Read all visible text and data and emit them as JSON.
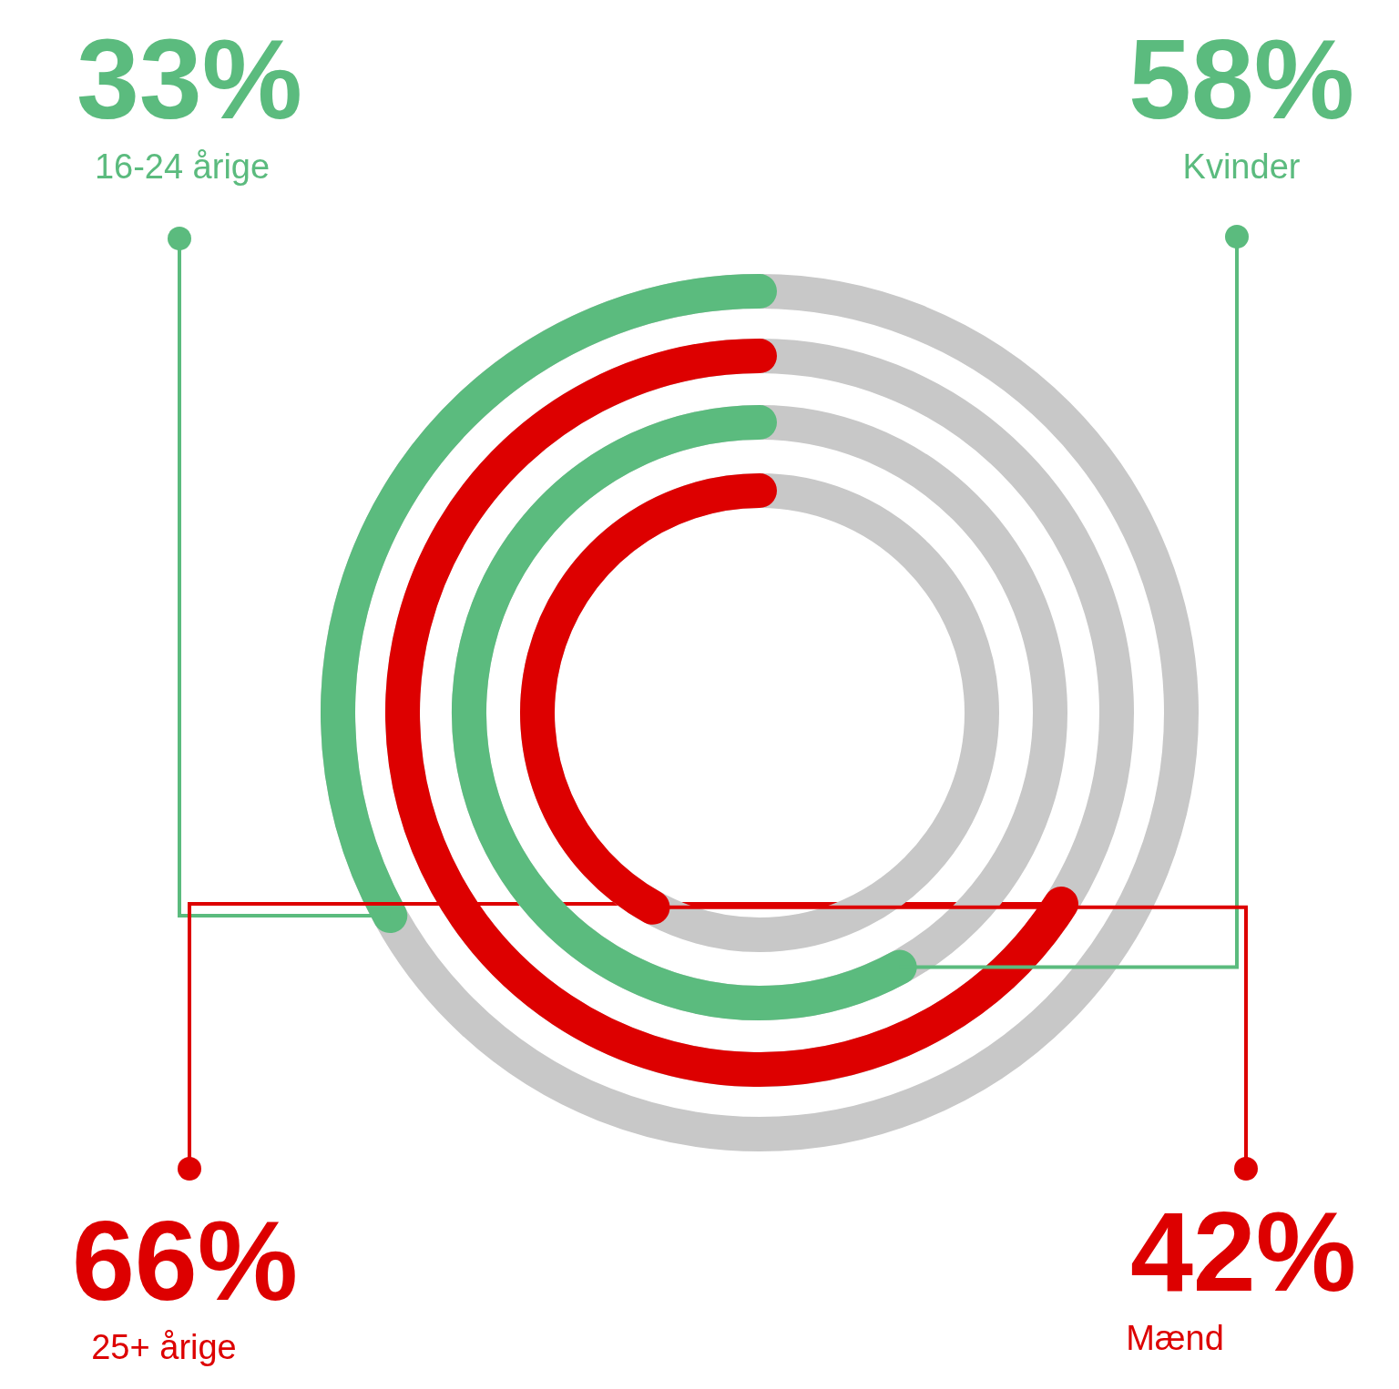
{
  "chart_data": {
    "type": "other",
    "categories": [
      "16-24 årige",
      "25+ årige",
      "Kvinder",
      "Mænd"
    ],
    "values": [
      33,
      66,
      58,
      42
    ],
    "colors": [
      "#5bbb7e",
      "#dd0000",
      "#5bbb7e",
      "#dd0000"
    ],
    "value_labels": [
      "33%",
      "66%",
      "58%",
      "42%"
    ]
  }
}
